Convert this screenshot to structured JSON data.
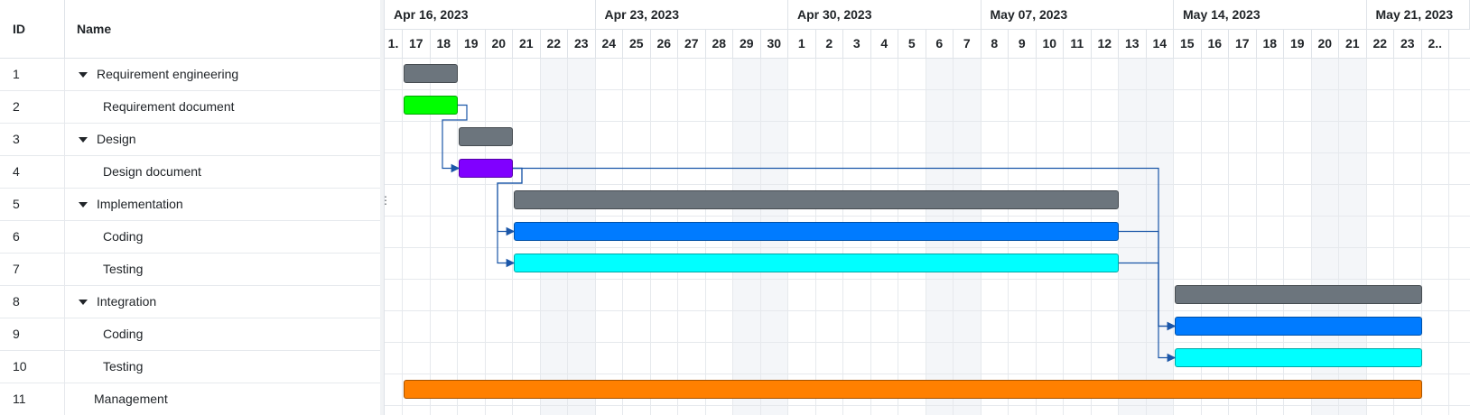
{
  "grid": {
    "header": {
      "id": "ID",
      "name": "Name"
    },
    "rows": [
      {
        "id": "1",
        "name": "Requirement engineering",
        "level": 0,
        "has_toggle": true
      },
      {
        "id": "2",
        "name": "Requirement document",
        "level": 1,
        "has_toggle": false
      },
      {
        "id": "3",
        "name": "Design",
        "level": 0,
        "has_toggle": true
      },
      {
        "id": "4",
        "name": "Design document",
        "level": 1,
        "has_toggle": false
      },
      {
        "id": "5",
        "name": "Implementation",
        "level": 0,
        "has_toggle": true
      },
      {
        "id": "6",
        "name": "Coding",
        "level": 1,
        "has_toggle": false
      },
      {
        "id": "7",
        "name": "Testing",
        "level": 1,
        "has_toggle": false
      },
      {
        "id": "8",
        "name": "Integration",
        "level": 0,
        "has_toggle": true
      },
      {
        "id": "9",
        "name": "Coding",
        "level": 1,
        "has_toggle": false
      },
      {
        "id": "10",
        "name": "Testing",
        "level": 1,
        "has_toggle": false
      },
      {
        "id": "11",
        "name": "Management",
        "level": 0,
        "has_toggle": false
      }
    ]
  },
  "splitter": {
    "grip": "⋮"
  },
  "scale": {
    "weeks": [
      "Apr 16, 2023",
      "Apr 23, 2023",
      "Apr 30, 2023",
      "May 07, 2023",
      "May 14, 2023",
      "May 21, 2023"
    ],
    "days": [
      "1.",
      "17",
      "18",
      "19",
      "20",
      "21",
      "22",
      "23",
      "24",
      "25",
      "26",
      "27",
      "28",
      "29",
      "30",
      "1",
      "2",
      "3",
      "4",
      "5",
      "6",
      "7",
      "8",
      "9",
      "10",
      "11",
      "12",
      "13",
      "14",
      "15",
      "16",
      "17",
      "18",
      "19",
      "20",
      "21",
      "22",
      "23",
      "2.."
    ],
    "weekend_day_indexes": [
      6,
      7,
      13,
      14,
      20,
      21,
      27,
      28,
      34,
      35
    ]
  },
  "tasks": [
    {
      "row": 0,
      "start": 1,
      "end": 3,
      "color": "#6c757d"
    },
    {
      "row": 1,
      "start": 1,
      "end": 3,
      "color": "#00ff00"
    },
    {
      "row": 2,
      "start": 3,
      "end": 5,
      "color": "#6c757d"
    },
    {
      "row": 3,
      "start": 3,
      "end": 5,
      "color": "#8000ff"
    },
    {
      "row": 4,
      "start": 5,
      "end": 27,
      "color": "#6c757d"
    },
    {
      "row": 5,
      "start": 5,
      "end": 27,
      "color": "#007bff"
    },
    {
      "row": 6,
      "start": 5,
      "end": 27,
      "color": "#00ffff"
    },
    {
      "row": 7,
      "start": 29,
      "end": 38,
      "color": "#6c757d"
    },
    {
      "row": 8,
      "start": 29,
      "end": 38,
      "color": "#007bff"
    },
    {
      "row": 9,
      "start": 29,
      "end": 38,
      "color": "#00ffff"
    },
    {
      "row": 10,
      "start": 1,
      "end": 38,
      "color": "#ff8000"
    }
  ],
  "links": [
    {
      "from": 1,
      "to": 3
    },
    {
      "from": 3,
      "to": 5
    },
    {
      "from": 3,
      "to": 6
    },
    {
      "from": 3,
      "to": 8
    },
    {
      "from": 5,
      "to": 8
    },
    {
      "from": 6,
      "to": 9
    }
  ],
  "colors": {
    "link": "#1a56a8",
    "weekend": "#f4f6f9",
    "border": "#dfe3e8"
  }
}
